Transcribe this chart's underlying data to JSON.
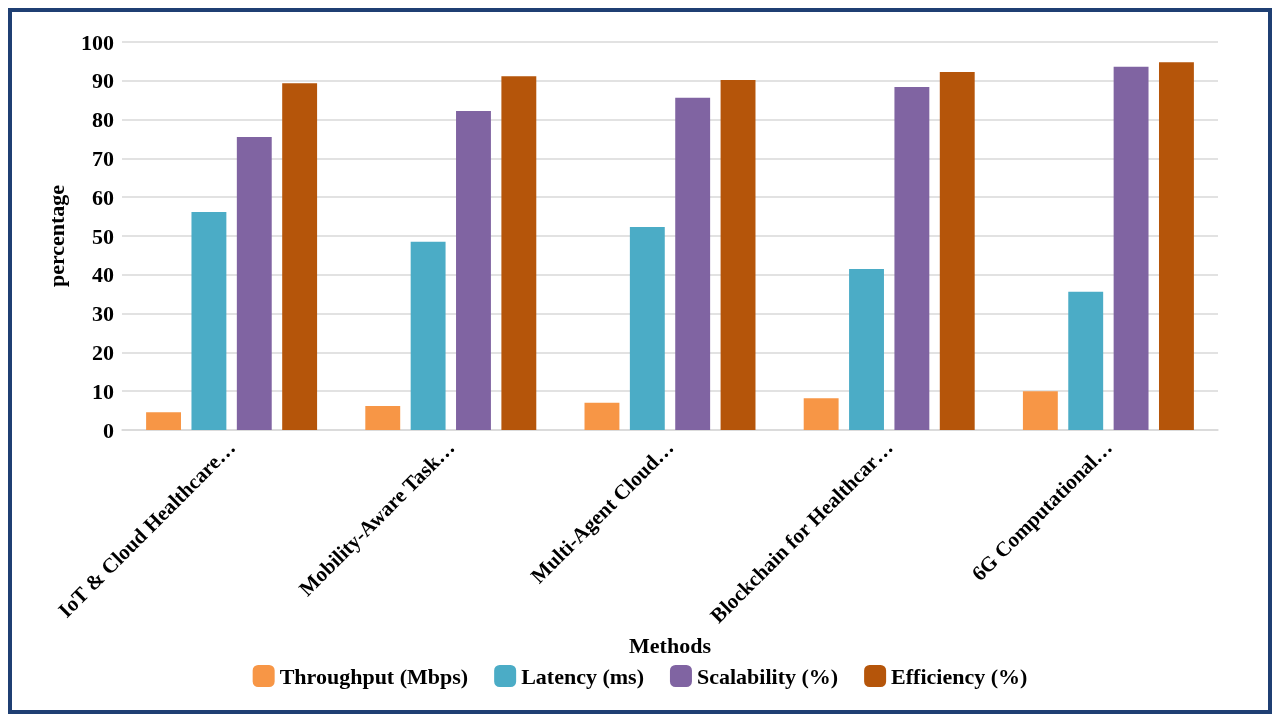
{
  "chart_data": {
    "type": "bar",
    "xlabel": "Methods",
    "ylabel": "percentage",
    "categories": [
      "IoT & Cloud Healthcare…",
      "Mobility-Aware Task…",
      "Multi-Agent Cloud…",
      "Blockchain for Healthcar…",
      "6G Computational…"
    ],
    "series": [
      {
        "name": "Throughput (Mbps)",
        "color": "#f79646",
        "values": [
          4.6,
          6.2,
          7.0,
          8.2,
          10.0
        ]
      },
      {
        "name": "Latency (ms)",
        "color": "#4bacc6",
        "values": [
          56.2,
          48.5,
          52.3,
          41.5,
          35.6
        ]
      },
      {
        "name": "Scalability (%)",
        "color": "#8064a2",
        "values": [
          75.5,
          82.2,
          85.6,
          88.4,
          93.6
        ]
      },
      {
        "name": "Efficiency (%)",
        "color": "#b5550a",
        "values": [
          89.4,
          91.2,
          90.2,
          92.3,
          94.8
        ]
      }
    ],
    "ylim": [
      0,
      100
    ],
    "yticks": [
      0,
      10,
      20,
      30,
      40,
      50,
      60,
      70,
      80,
      90,
      100
    ],
    "grid": "y",
    "legend": "bottom"
  }
}
